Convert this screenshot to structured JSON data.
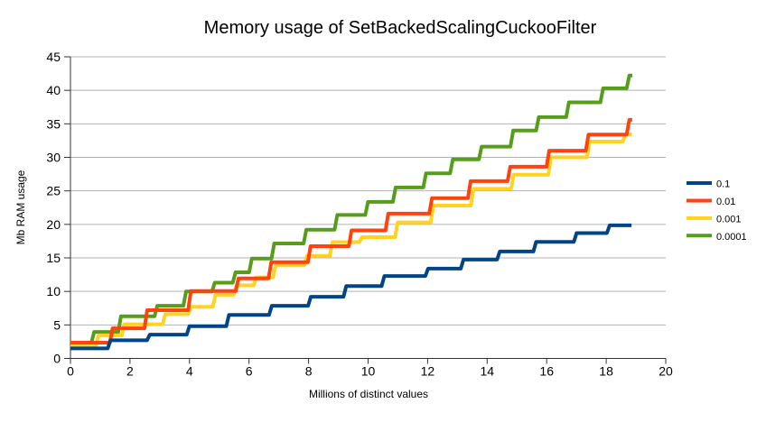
{
  "chart_data": {
    "type": "line",
    "step": true,
    "title": "Memory usage of SetBackedScalingCuckooFilter",
    "xlabel": "Millions of distinct values",
    "ylabel": "Mb RAM usage",
    "xlim": [
      0,
      20
    ],
    "ylim": [
      0,
      45
    ],
    "x_ticks": [
      0,
      2,
      4,
      6,
      8,
      10,
      12,
      14,
      16,
      18,
      20
    ],
    "y_ticks": [
      0,
      5,
      10,
      15,
      20,
      25,
      30,
      35,
      40,
      45
    ],
    "grid": "horizontal",
    "legend_position": "right",
    "series": [
      {
        "name": "0.1",
        "color": "#004586",
        "x_end": 18.85,
        "points": [
          [
            0,
            1.5
          ],
          [
            1.3,
            2.7
          ],
          [
            2.62,
            3.55
          ],
          [
            3.95,
            4.8
          ],
          [
            5.28,
            6.5
          ],
          [
            6.72,
            7.85
          ],
          [
            8.03,
            9.2
          ],
          [
            9.22,
            10.8
          ],
          [
            10.5,
            12.3
          ],
          [
            11.97,
            13.4
          ],
          [
            13.16,
            14.75
          ],
          [
            14.38,
            15.95
          ],
          [
            15.6,
            17.4
          ],
          [
            16.96,
            18.7
          ],
          [
            18.07,
            19.85
          ]
        ]
      },
      {
        "name": "0.01",
        "color": "#ff420e",
        "x_end": 18.87,
        "points": [
          [
            0,
            2.35
          ],
          [
            1.37,
            4.5
          ],
          [
            2.53,
            7.2
          ],
          [
            4.0,
            10.05
          ],
          [
            5.6,
            11.95
          ],
          [
            6.7,
            14.35
          ],
          [
            8.02,
            16.75
          ],
          [
            9.4,
            19.1
          ],
          [
            10.63,
            21.6
          ],
          [
            12.1,
            23.9
          ],
          [
            13.4,
            26.45
          ],
          [
            14.73,
            28.6
          ],
          [
            16.04,
            31.0
          ],
          [
            17.36,
            33.4
          ],
          [
            18.73,
            35.6
          ]
        ]
      },
      {
        "name": "0.001",
        "color": "#ffd320",
        "x_end": 18.87,
        "points": [
          [
            0,
            1.95
          ],
          [
            0.9,
            3.45
          ],
          [
            1.77,
            5.1
          ],
          [
            3.14,
            6.6
          ],
          [
            4.0,
            7.7
          ],
          [
            4.83,
            9.5
          ],
          [
            5.53,
            10.9
          ],
          [
            6.2,
            12.1
          ],
          [
            6.85,
            13.9
          ],
          [
            7.9,
            15.3
          ],
          [
            8.76,
            17.35
          ],
          [
            9.75,
            18.1
          ],
          [
            10.95,
            20.3
          ],
          [
            12.15,
            22.8
          ],
          [
            13.5,
            25.3
          ],
          [
            14.85,
            27.4
          ],
          [
            16.1,
            30.0
          ],
          [
            17.4,
            32.35
          ],
          [
            18.6,
            33.45
          ]
        ]
      },
      {
        "name": "0.0001",
        "color": "#579d1c",
        "x_end": 18.88,
        "points": [
          [
            0,
            2.35
          ],
          [
            0.75,
            3.95
          ],
          [
            1.65,
            6.3
          ],
          [
            2.87,
            7.85
          ],
          [
            3.84,
            10.0
          ],
          [
            4.8,
            11.3
          ],
          [
            5.5,
            12.85
          ],
          [
            6.05,
            14.9
          ],
          [
            6.8,
            17.15
          ],
          [
            7.88,
            19.2
          ],
          [
            8.92,
            21.4
          ],
          [
            9.95,
            23.35
          ],
          [
            10.88,
            25.5
          ],
          [
            11.9,
            27.6
          ],
          [
            12.8,
            29.7
          ],
          [
            13.77,
            31.6
          ],
          [
            14.83,
            34.0
          ],
          [
            15.69,
            36.0
          ],
          [
            16.7,
            38.2
          ],
          [
            17.85,
            40.3
          ],
          [
            18.73,
            42.2
          ]
        ]
      }
    ]
  },
  "colors": {
    "background": "#ffffff",
    "grid": "#b3b3b3",
    "axis": "#333333",
    "text": "#000000"
  }
}
